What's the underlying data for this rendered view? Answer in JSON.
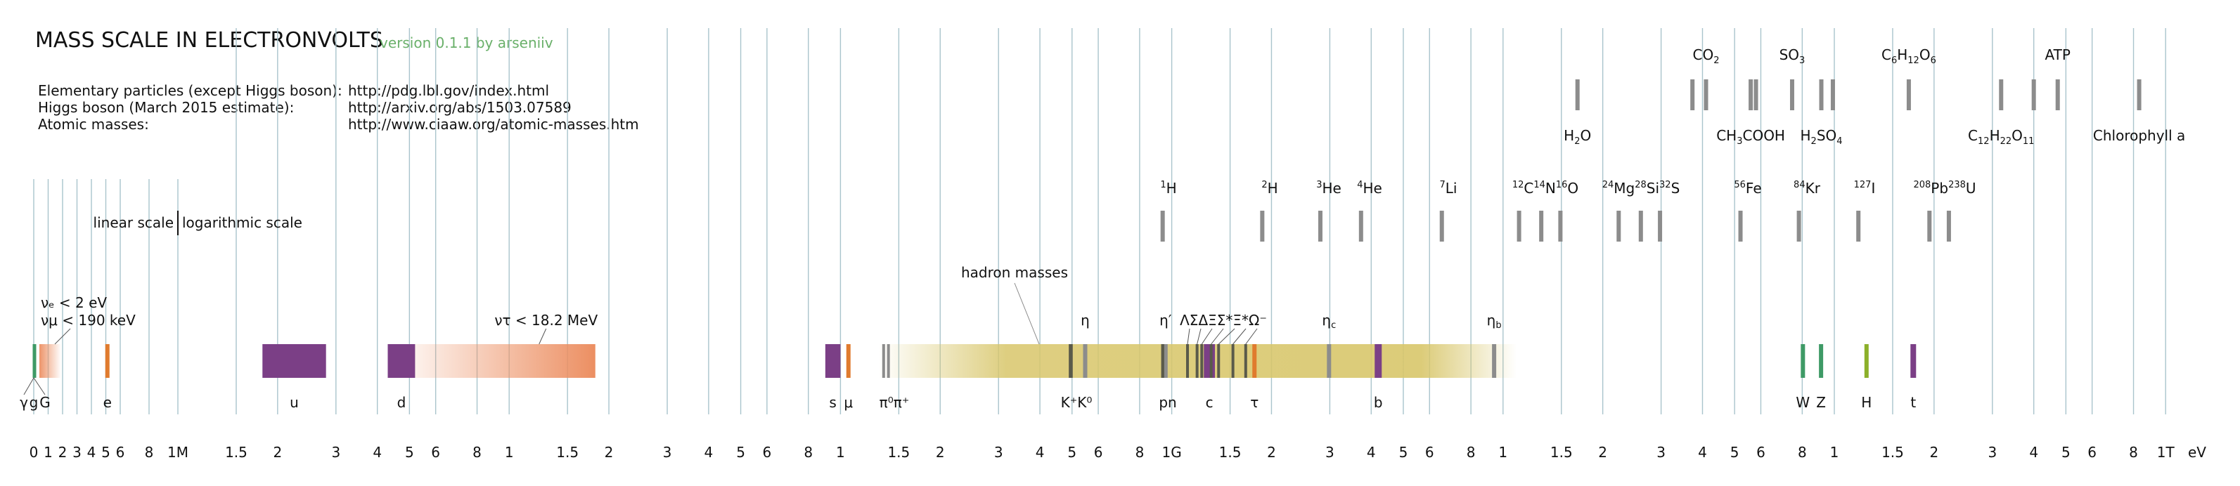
{
  "header": {
    "title": "MASS SCALE IN ELECTRONVOLTS",
    "version": "version 0.1.1 by arseniiv"
  },
  "sources": [
    {
      "label": "Elementary particles (except Higgs boson):",
      "url": "http://pdg.lbl.gov/index.html"
    },
    {
      "label": "Higgs boson (March 2015 estimate):",
      "url": "http://arxiv.org/abs/1503.07589"
    },
    {
      "label": "Atomic masses:",
      "url": "http://www.ciaaw.org/atomic-masses.htm"
    }
  ],
  "chart_data": {
    "type": "mass-scale",
    "axis_unit": "eV",
    "linear_segment": {
      "range_eV": [
        0,
        1000000
      ],
      "ticks": [
        {
          "v": 0,
          "label": "0"
        },
        {
          "v": 100000,
          "label": "1"
        },
        {
          "v": 200000,
          "label": "2"
        },
        {
          "v": 300000,
          "label": "3"
        },
        {
          "v": 400000,
          "label": "4"
        },
        {
          "v": 500000,
          "label": "5"
        },
        {
          "v": 600000,
          "label": "6"
        },
        {
          "v": 800000,
          "label": "8"
        },
        {
          "v": 1000000,
          "label": "1M"
        }
      ]
    },
    "log_segment": {
      "range_eV": [
        1000000,
        1000000000000
      ],
      "ticks": [
        {
          "v": 1500000.0,
          "label": "1.5"
        },
        {
          "v": 2000000.0,
          "label": "2"
        },
        {
          "v": 3000000.0,
          "label": "3"
        },
        {
          "v": 4000000.0,
          "label": "4"
        },
        {
          "v": 5000000.0,
          "label": "5"
        },
        {
          "v": 6000000.0,
          "label": "6"
        },
        {
          "v": 8000000.0,
          "label": "8"
        },
        {
          "v": 10000000.0,
          "label": "1"
        },
        {
          "v": 15000000.0,
          "label": "1.5"
        },
        {
          "v": 20000000.0,
          "label": "2"
        },
        {
          "v": 30000000.0,
          "label": "3"
        },
        {
          "v": 40000000.0,
          "label": "4"
        },
        {
          "v": 50000000.0,
          "label": "5"
        },
        {
          "v": 60000000.0,
          "label": "6"
        },
        {
          "v": 80000000.0,
          "label": "8"
        },
        {
          "v": 100000000.0,
          "label": "1"
        },
        {
          "v": 150000000.0,
          "label": "1.5"
        },
        {
          "v": 200000000.0,
          "label": "2"
        },
        {
          "v": 300000000.0,
          "label": "3"
        },
        {
          "v": 400000000.0,
          "label": "4"
        },
        {
          "v": 500000000.0,
          "label": "5"
        },
        {
          "v": 600000000.0,
          "label": "6"
        },
        {
          "v": 800000000.0,
          "label": "8"
        },
        {
          "v": 1000000000.0,
          "label": "1G"
        },
        {
          "v": 1500000000.0,
          "label": "1.5"
        },
        {
          "v": 2000000000.0,
          "label": "2"
        },
        {
          "v": 3000000000.0,
          "label": "3"
        },
        {
          "v": 4000000000.0,
          "label": "4"
        },
        {
          "v": 5000000000.0,
          "label": "5"
        },
        {
          "v": 6000000000.0,
          "label": "6"
        },
        {
          "v": 8000000000.0,
          "label": "8"
        },
        {
          "v": 10000000000.0,
          "label": "1"
        },
        {
          "v": 15000000000.0,
          "label": "1.5"
        },
        {
          "v": 20000000000.0,
          "label": "2"
        },
        {
          "v": 30000000000.0,
          "label": "3"
        },
        {
          "v": 40000000000.0,
          "label": "4"
        },
        {
          "v": 50000000000.0,
          "label": "5"
        },
        {
          "v": 60000000000.0,
          "label": "6"
        },
        {
          "v": 80000000000.0,
          "label": "8"
        },
        {
          "v": 100000000000.0,
          "label": "1"
        },
        {
          "v": 150000000000.0,
          "label": "1.5"
        },
        {
          "v": 200000000000.0,
          "label": "2"
        },
        {
          "v": 300000000000.0,
          "label": "3"
        },
        {
          "v": 400000000000.0,
          "label": "4"
        },
        {
          "v": 500000000000.0,
          "label": "5"
        },
        {
          "v": 600000000000.0,
          "label": "6"
        },
        {
          "v": 800000000000.0,
          "label": "8"
        },
        {
          "v": 1000000000000.0,
          "label": "1T"
        }
      ]
    },
    "scale_note": {
      "left": "linear scale",
      "right": "logarithmic scale"
    },
    "colors": {
      "grid": "#a9c4cc",
      "boson": "#3e9a66",
      "lepton": "#e07b2e",
      "quark": "#7b3f86",
      "meson": "#8c8c8c",
      "hadron_band": "#d8c66a",
      "hadron_dark": "#5a5a4a",
      "higgs": "#8cb02a",
      "atom": "#8c8c8c",
      "hadron_text": "#333333"
    },
    "particles": [
      {
        "name": "γ",
        "mass_eV": 0,
        "type": "boson"
      },
      {
        "name": "g",
        "mass_eV": 0,
        "type": "boson"
      },
      {
        "name": "G",
        "mass_eV": 0,
        "type": "boson"
      },
      {
        "name": "e",
        "mass_eV": 511000,
        "type": "lepton"
      },
      {
        "name": "u",
        "range_eV": [
          1800000,
          2800000
        ],
        "type": "quark"
      },
      {
        "name": "d",
        "range_eV": [
          4300000,
          5200000
        ],
        "type": "quark"
      },
      {
        "name": "s",
        "range_eV": [
          90000000,
          100000000
        ],
        "type": "quark"
      },
      {
        "name": "μ",
        "mass_eV": 105700000,
        "type": "lepton"
      },
      {
        "name": "π⁰π⁺",
        "masses_eV": [
          135000000,
          139600000
        ],
        "type": "meson"
      },
      {
        "name": "K⁺K⁰",
        "masses_eV": [
          493700000,
          497600000
        ],
        "type": "meson"
      },
      {
        "name": "η",
        "mass_eV": 547900000,
        "type": "meson"
      },
      {
        "name": "pn",
        "masses_eV": [
          938300000,
          939600000
        ],
        "type": "baryon"
      },
      {
        "name": "η′",
        "mass_eV": 957800000,
        "type": "meson"
      },
      {
        "name": "Λ",
        "mass_eV": 1115700000,
        "type": "baryon"
      },
      {
        "name": "Σ",
        "mass_eV": 1192600000,
        "type": "baryon"
      },
      {
        "name": "Δ",
        "mass_eV": 1232000000,
        "type": "baryon"
      },
      {
        "name": "Ξ",
        "mass_eV": 1315000000,
        "type": "baryon"
      },
      {
        "name": "Σ*",
        "mass_eV": 1385000000,
        "type": "baryon"
      },
      {
        "name": "Ξ*",
        "mass_eV": 1530000000,
        "type": "baryon"
      },
      {
        "name": "Ω⁻",
        "mass_eV": 1672000000,
        "type": "baryon"
      },
      {
        "name": "c",
        "range_eV": [
          1250000000,
          1350000000
        ],
        "type": "quark"
      },
      {
        "name": "τ",
        "mass_eV": 1776900000,
        "type": "lepton"
      },
      {
        "name": "ηc",
        "mass_eV": 2983600000,
        "type": "meson"
      },
      {
        "name": "b",
        "range_eV": [
          4150000000,
          4250000000
        ],
        "type": "quark"
      },
      {
        "name": "ηb",
        "mass_eV": 9399000000,
        "type": "meson"
      },
      {
        "name": "W",
        "mass_eV": 80385000000,
        "type": "boson"
      },
      {
        "name": "Z",
        "mass_eV": 91188000000,
        "type": "boson"
      },
      {
        "name": "H",
        "mass_eV": 125090000000,
        "type": "higgs"
      },
      {
        "name": "t",
        "mass_eV": 173100000000,
        "type": "quark"
      }
    ],
    "hadron_band": {
      "label": "hadron masses",
      "range_eV": [
        130000000,
        11000000000
      ]
    },
    "neutrinos": [
      {
        "name": "νe",
        "text": "νₑ < 2 eV",
        "upper_eV": 2
      },
      {
        "name": "νμ",
        "text": "νμ < 190 keV",
        "upper_eV": 190000
      },
      {
        "name": "ντ",
        "text": "ντ < 18.2 MeV",
        "upper_eV": 18200000
      }
    ],
    "atoms": [
      {
        "symbol": "H",
        "mass_number": "1",
        "mass_eV": 938800000
      },
      {
        "symbol": "H",
        "mass_number": "2",
        "mass_eV": 1876000000
      },
      {
        "symbol": "He",
        "mass_number": "3",
        "mass_eV": 2809000000
      },
      {
        "symbol": "He",
        "mass_number": "4",
        "mass_eV": 3727000000
      },
      {
        "symbol": "Li",
        "mass_number": "7",
        "mass_eV": 6535000000
      },
      {
        "symbol": "C",
        "mass_number": "12",
        "mass_eV": 11178000000
      },
      {
        "symbol": "N",
        "mass_number": "14",
        "mass_eV": 13043000000
      },
      {
        "symbol": "O",
        "mass_number": "16",
        "mass_eV": 14899000000
      },
      {
        "symbol": "Mg",
        "mass_number": "24",
        "mass_eV": 22341000000
      },
      {
        "symbol": "Si",
        "mass_number": "28",
        "mass_eV": 26060000000
      },
      {
        "symbol": "S",
        "mass_number": "32",
        "mass_eV": 29773000000
      },
      {
        "symbol": "Fe",
        "mass_number": "56",
        "mass_eV": 52090000000
      },
      {
        "symbol": "Kr",
        "mass_number": "84",
        "mass_eV": 78170000000
      },
      {
        "symbol": "I",
        "mass_number": "127",
        "mass_eV": 118200000000
      },
      {
        "symbol": "Pb",
        "mass_number": "208",
        "mass_eV": 193700000000
      },
      {
        "symbol": "U",
        "mass_number": "238",
        "mass_eV": 221700000000
      }
    ],
    "molecules": [
      {
        "parts": [
          [
            "H",
            ""
          ],
          [
            "2",
            "sub"
          ],
          [
            "O",
            ""
          ]
        ],
        "mass_eV": 16780000000
      },
      {
        "parts": [
          [
            "CO",
            ""
          ],
          [
            "2",
            "sub"
          ]
        ],
        "mass_eV": 40990000000
      },
      {
        "parts": [
          [
            "CH",
            ""
          ],
          [
            "3",
            "sub"
          ],
          [
            "COOH",
            ""
          ]
        ],
        "mass_eV": 55930000000
      },
      {
        "parts": [
          [
            "SO",
            ""
          ],
          [
            "3",
            "sub"
          ]
        ],
        "mass_eV": 74580000000
      },
      {
        "parts": [
          [
            "H",
            ""
          ],
          [
            "2",
            "sub"
          ],
          [
            "SO",
            ""
          ],
          [
            "4",
            "sub"
          ]
        ],
        "mass_eV": 91360000000
      },
      {
        "parts": [
          [
            "C",
            ""
          ],
          [
            "6",
            "sub"
          ],
          [
            "H",
            ""
          ],
          [
            "12",
            "sub"
          ],
          [
            "O",
            ""
          ],
          [
            "6",
            "sub"
          ]
        ],
        "mass_eV": 167800000000
      },
      {
        "parts": [
          [
            "C",
            ""
          ],
          [
            "12",
            "sub"
          ],
          [
            "H",
            ""
          ],
          [
            "22",
            "sub"
          ],
          [
            "O",
            ""
          ],
          [
            "11",
            "sub"
          ]
        ],
        "mass_eV": 318800000000
      },
      {
        "parts": [
          [
            "ATP",
            ""
          ]
        ],
        "mass_eV": 472400000000
      },
      {
        "parts": [
          [
            "Chlorophyll a",
            ""
          ]
        ],
        "mass_eV": 832100000000
      }
    ]
  }
}
